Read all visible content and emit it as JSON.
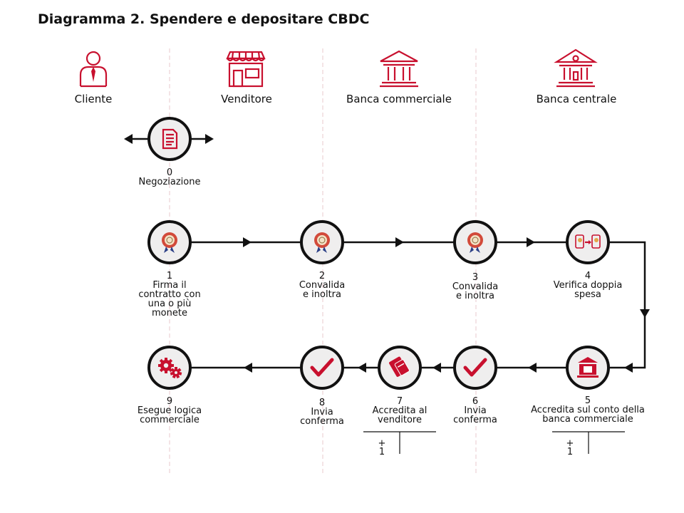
{
  "title": "Diagramma 2. Spendere e depositare CBDC",
  "actors": [
    "Cliente",
    "Venditore",
    "Banca commerciale",
    "Banca centrale"
  ],
  "steps": [
    {
      "num": "0",
      "lines": [
        "Negoziazione"
      ],
      "icon": "document-icon"
    },
    {
      "num": "1",
      "lines": [
        "Firma il",
        "contratto con",
        "una o più",
        "monete"
      ],
      "icon": "coin-seal-icon"
    },
    {
      "num": "2",
      "lines": [
        "Convalida",
        "e inoltra"
      ],
      "icon": "coin-seal-icon"
    },
    {
      "num": "3",
      "lines": [
        "Convalida",
        "e inoltra"
      ],
      "icon": "coin-seal-icon"
    },
    {
      "num": "4",
      "lines": [
        "Verifica doppia",
        "spesa"
      ],
      "icon": "double-spend-check-icon"
    },
    {
      "num": "5",
      "lines": [
        "Accredita sul conto della",
        "banca commerciale"
      ],
      "icon": "bank-deposit-icon"
    },
    {
      "num": "6",
      "lines": [
        "Invia",
        "conferma"
      ],
      "icon": "checkmark-icon"
    },
    {
      "num": "7",
      "lines": [
        "Accredita al",
        "venditore"
      ],
      "icon": "card-payment-icon"
    },
    {
      "num": "8",
      "lines": [
        "Invia",
        "conferma"
      ],
      "icon": "checkmark-icon"
    },
    {
      "num": "9",
      "lines": [
        "Esegue logica",
        "commerciale"
      ],
      "icon": "gears-icon"
    }
  ],
  "ledgers": [
    {
      "sign": "+",
      "amount": "1"
    },
    {
      "sign": "+",
      "amount": "1"
    }
  ],
  "colors": {
    "accent": "#c8102e",
    "node_fill": "#efeeee",
    "line": "#111111",
    "lane": "#e8c9cc"
  }
}
